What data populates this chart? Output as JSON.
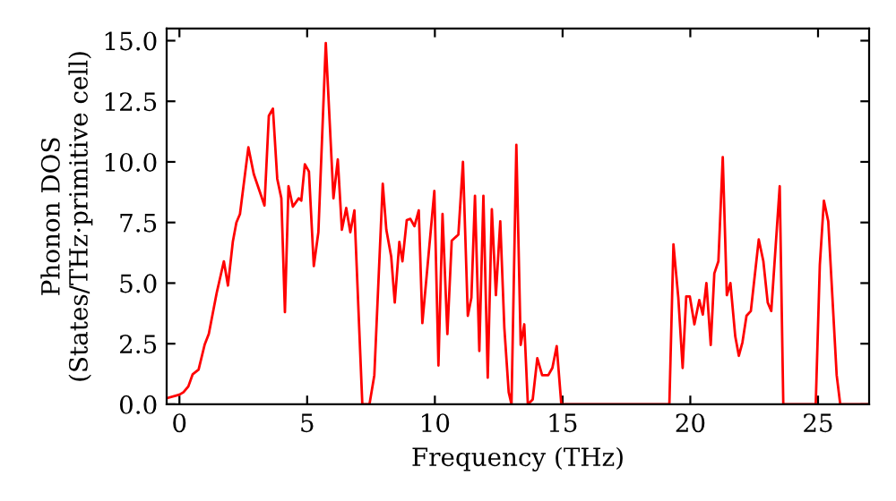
{
  "chart_data": {
    "type": "line",
    "xlabel": "Frequency (THz)",
    "ylabel": "Phonon DOS\n(States/THz·primitive cell)",
    "xlim": [
      -0.5,
      27
    ],
    "ylim": [
      0,
      15.5
    ],
    "xticks": [
      0,
      5,
      10,
      15,
      20,
      25
    ],
    "yticks": [
      {
        "value": 0,
        "label": "0.0"
      },
      {
        "value": 2.5,
        "label": "2.5"
      },
      {
        "value": 5,
        "label": "5.0"
      },
      {
        "value": 7.5,
        "label": "7.5"
      },
      {
        "value": 10,
        "label": "10.0"
      },
      {
        "value": 12.5,
        "label": "12.5"
      },
      {
        "value": 15,
        "label": "15.0"
      }
    ],
    "grid": false,
    "legend": false,
    "marker": "none",
    "line_style": "solid",
    "series": [
      {
        "color": "#ff0000",
        "x": [
          -0.5,
          0,
          0.16,
          0.35,
          0.52,
          0.75,
          0.99,
          1.15,
          1.46,
          1.74,
          1.9,
          2.09,
          2.23,
          2.37,
          2.7,
          2.91,
          3.33,
          3.5,
          3.66,
          3.83,
          3.99,
          4.13,
          4.27,
          4.44,
          4.67,
          4.77,
          4.91,
          5.07,
          5.26,
          5.44,
          5.73,
          6.03,
          6.2,
          6.36,
          6.53,
          6.69,
          6.85,
          7.16,
          7.44,
          7.63,
          7.96,
          8.1,
          8.29,
          8.43,
          8.61,
          8.73,
          8.9,
          9.04,
          9.2,
          9.37,
          9.51,
          9.98,
          10.14,
          10.3,
          10.49,
          10.66,
          10.92,
          11.1,
          11.29,
          11.43,
          11.57,
          11.74,
          11.9,
          12.07,
          12.23,
          12.39,
          12.56,
          12.72,
          12.89,
          13.0,
          13.19,
          13.36,
          13.5,
          13.64,
          13.83,
          14.01,
          14.2,
          14.44,
          14.6,
          14.77,
          14.95,
          19.18,
          19.34,
          19.53,
          19.7,
          19.84,
          19.98,
          20.16,
          20.35,
          20.49,
          20.63,
          20.8,
          20.94,
          21.1,
          21.27,
          21.43,
          21.57,
          21.76,
          21.9,
          22.04,
          22.2,
          22.37,
          22.68,
          22.86,
          23.03,
          23.17,
          23.5,
          23.64,
          24.91,
          25.07,
          25.23,
          25.4,
          25.73,
          25.87,
          27.0
        ],
        "values": [
          0.25,
          0.4,
          0.5,
          0.74,
          1.24,
          1.43,
          2.47,
          2.9,
          4.6,
          5.9,
          4.9,
          6.7,
          7.5,
          7.85,
          10.6,
          9.5,
          8.2,
          11.9,
          12.2,
          9.3,
          8.5,
          3.8,
          9.0,
          8.15,
          8.5,
          8.4,
          9.9,
          9.6,
          5.7,
          7.1,
          14.9,
          8.5,
          10.1,
          7.2,
          8.1,
          7.1,
          8.0,
          0,
          0,
          1.2,
          9.1,
          7.2,
          6.1,
          4.2,
          6.7,
          5.9,
          7.6,
          7.65,
          7.35,
          8.0,
          3.35,
          8.8,
          1.6,
          7.85,
          2.9,
          6.75,
          7.0,
          10.0,
          3.65,
          4.4,
          8.6,
          2.2,
          8.6,
          1.1,
          8.05,
          4.5,
          7.55,
          3.15,
          0.5,
          0,
          10.7,
          2.45,
          3.3,
          0,
          0.2,
          1.9,
          1.2,
          1.2,
          1.5,
          2.4,
          0,
          0,
          6.6,
          4.4,
          1.5,
          4.45,
          4.45,
          3.3,
          4.3,
          3.7,
          5.0,
          2.45,
          5.4,
          5.9,
          10.2,
          4.5,
          5.0,
          2.8,
          2.0,
          2.55,
          3.65,
          3.85,
          6.8,
          5.9,
          4.2,
          3.85,
          9.0,
          0,
          0,
          5.75,
          8.4,
          7.55,
          1.2,
          0,
          0
        ]
      }
    ]
  }
}
